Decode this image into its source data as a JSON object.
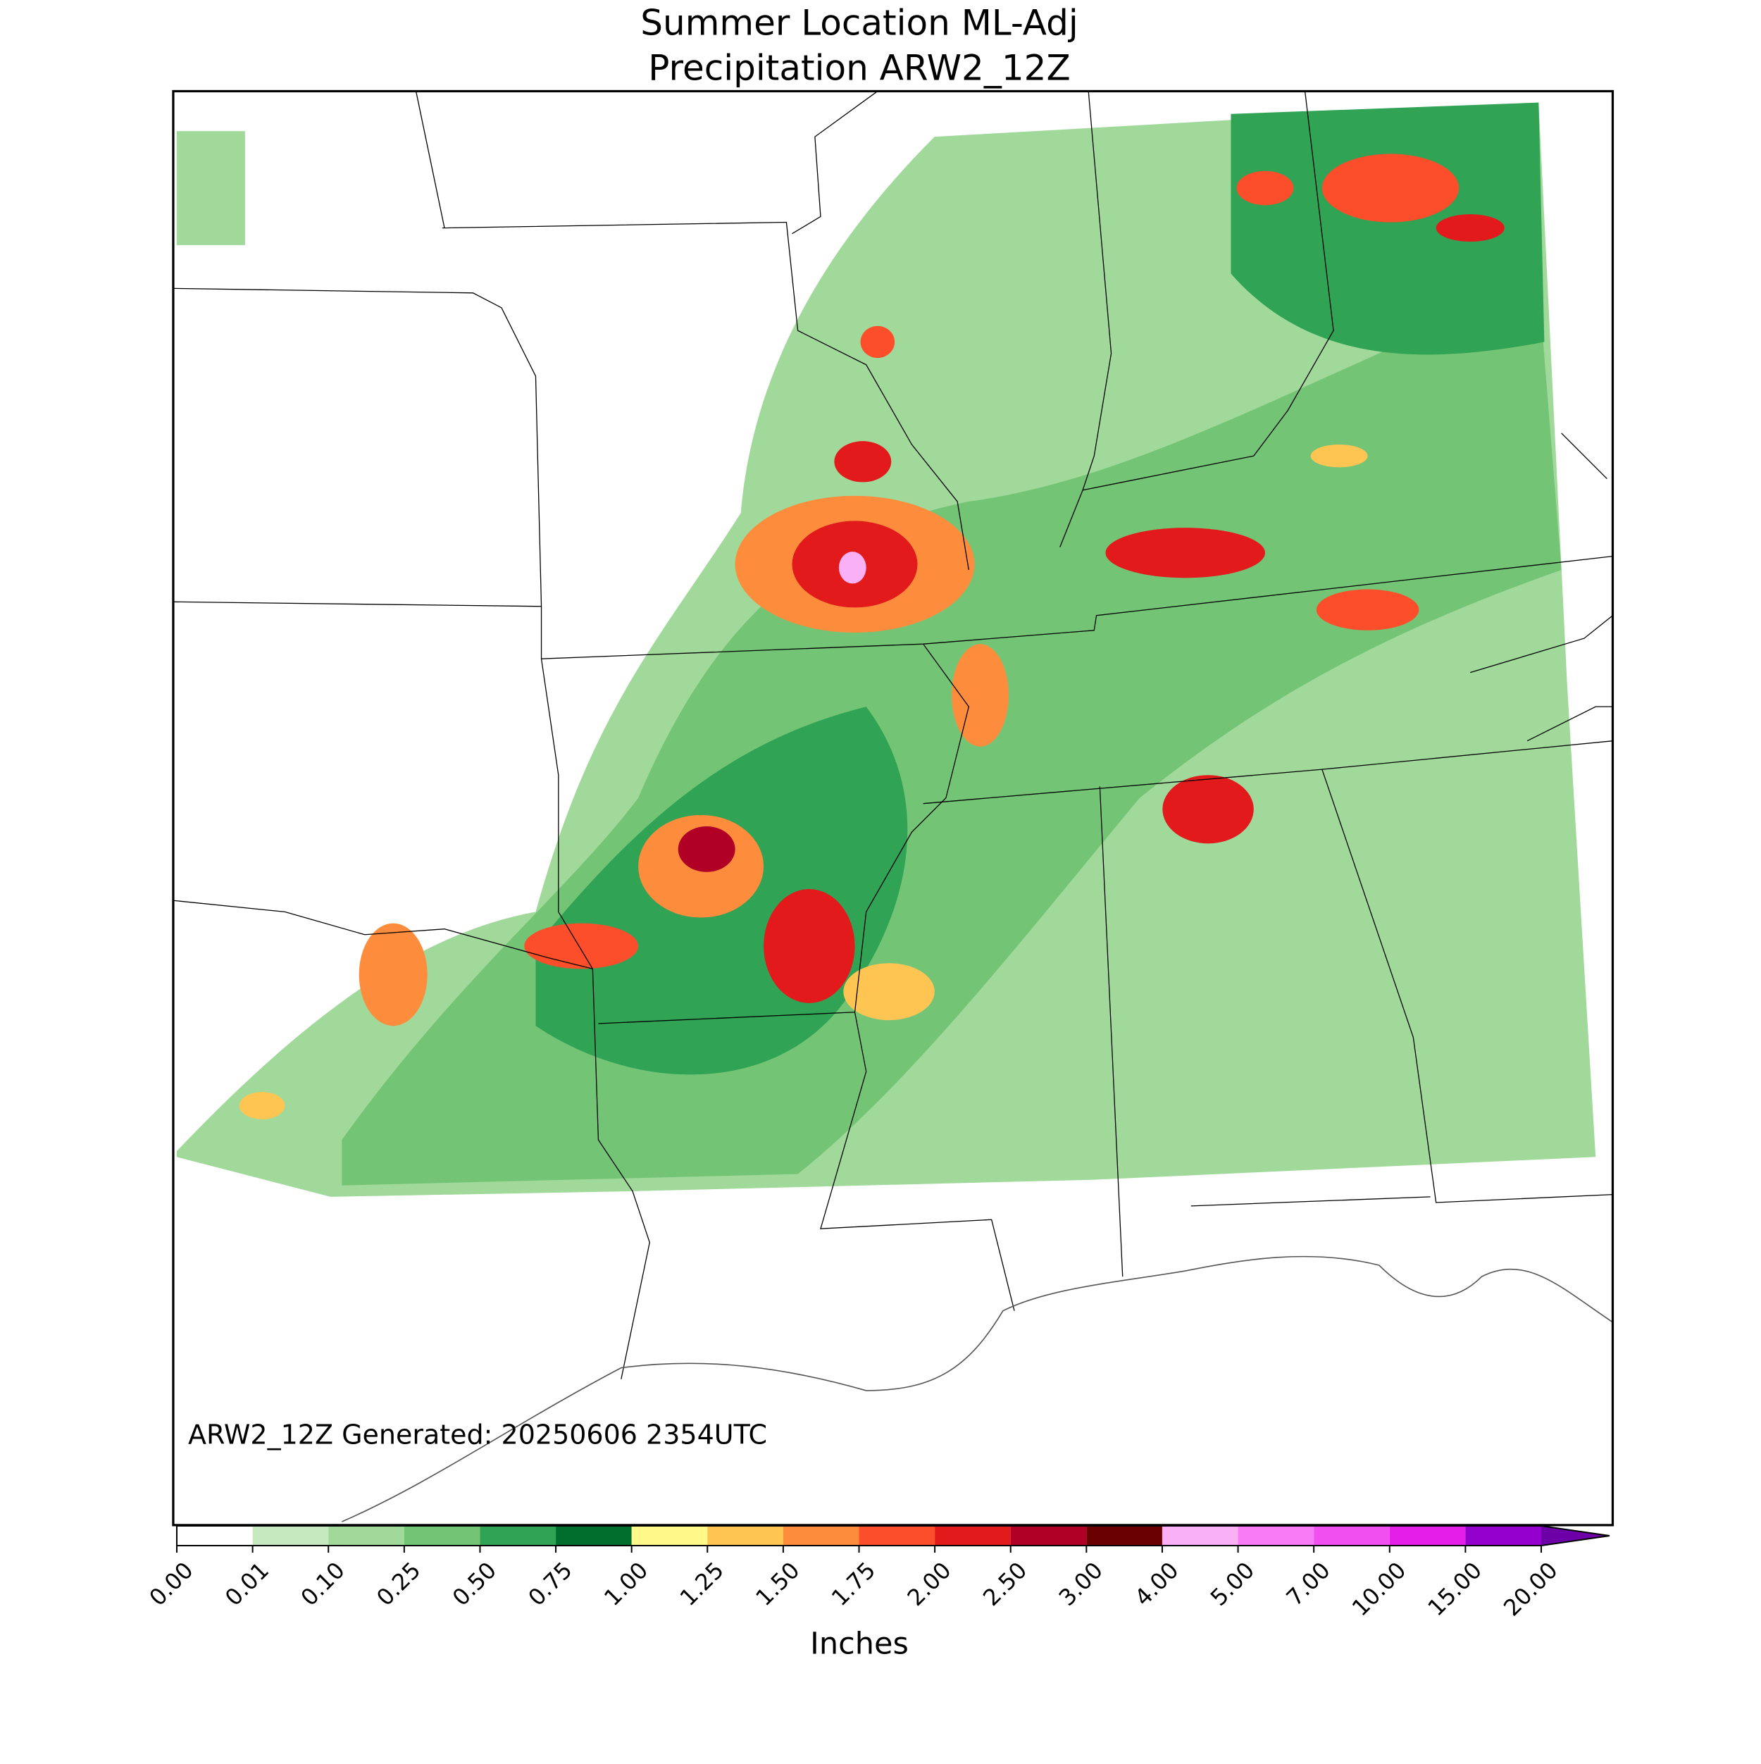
{
  "header": {
    "title_lines": [
      "Summer Location ML-Adj",
      "Precipitation ARW2_12Z"
    ]
  },
  "map": {
    "footnote": "ARW2_12Z Generated: 20250606 2354UTC"
  },
  "colorbar": {
    "label": "Inches",
    "ticks": [
      {
        "value": 0,
        "label": "0.00"
      },
      {
        "value": 0.01,
        "label": "0.01"
      },
      {
        "value": 0.1,
        "label": "0.10"
      },
      {
        "value": 0.25,
        "label": "0.25"
      },
      {
        "value": 0.5,
        "label": "0.50"
      },
      {
        "value": 0.75,
        "label": "0.75"
      },
      {
        "value": 1,
        "label": "1.00"
      },
      {
        "value": 1.25,
        "label": "1.25"
      },
      {
        "value": 1.5,
        "label": "1.50"
      },
      {
        "value": 1.75,
        "label": "1.75"
      },
      {
        "value": 2,
        "label": "2.00"
      },
      {
        "value": 2.5,
        "label": "2.50"
      },
      {
        "value": 3,
        "label": "3.00"
      },
      {
        "value": 4,
        "label": "4.00"
      },
      {
        "value": 5,
        "label": "5.00"
      },
      {
        "value": 7,
        "label": "7.00"
      },
      {
        "value": 10,
        "label": "10.00"
      },
      {
        "value": 15,
        "label": "15.00"
      },
      {
        "value": 20,
        "label": "20.00"
      }
    ],
    "colors": [
      "#ffffff",
      "#c7e9c0",
      "#a1d99b",
      "#74c476",
      "#31a354",
      "#006d2c",
      "#fff98a",
      "#ffc553",
      "#fd8d3c",
      "#fc4e2a",
      "#e31a1c",
      "#b10026",
      "#6b0000",
      "#f9b0f4",
      "#f77cf5",
      "#f24ff1",
      "#e41fe8",
      "#9400cc"
    ],
    "extend_color": "#6e00a8"
  }
}
